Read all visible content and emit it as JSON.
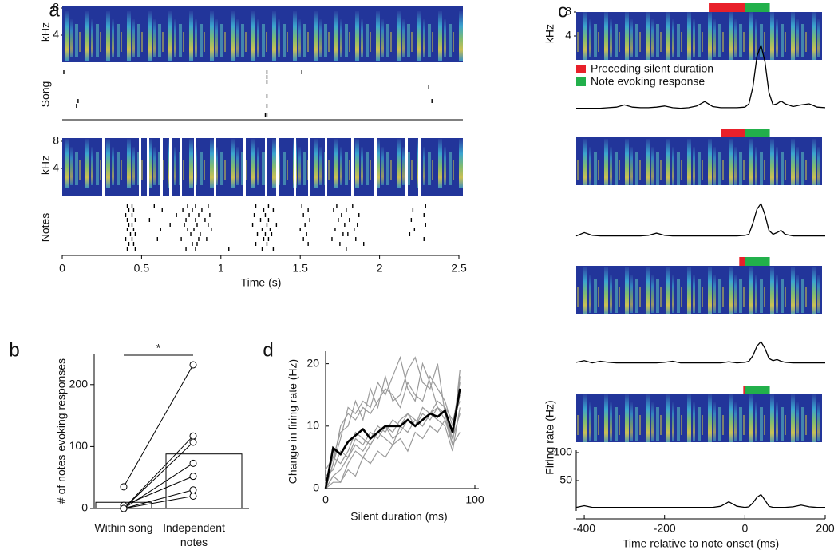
{
  "chart_data": [
    {
      "type": "raster",
      "label": "a",
      "spectrogram": {
        "ylabel": "kHz",
        "ylim": [
          0,
          8
        ],
        "yticks": [
          4,
          8
        ]
      },
      "rasters": [
        {
          "name": "Song",
          "trials": [
            [
              0.01,
              1.29,
              1.51
            ],
            [
              1.29
            ],
            [
              1.29
            ],
            [
              2.31
            ],
            [],
            [
              1.29
            ],
            [
              0.1,
              2.33
            ],
            [
              0.09,
              1.29
            ],
            [],
            [
              1.28,
              1.29
            ]
          ]
        },
        {
          "name": "Notes",
          "trials": [
            [
              0.41,
              0.44,
              0.58,
              0.79,
              0.84,
              0.92,
              1.22,
              1.3,
              1.51,
              1.73,
              1.83,
              2.29
            ],
            [
              0.42,
              0.45,
              0.63,
              0.76,
              0.82,
              0.88,
              1.27,
              1.33,
              1.55,
              1.71,
              1.79,
              2.21
            ],
            [
              0.4,
              0.44,
              0.72,
              0.8,
              0.86,
              0.93,
              1.21,
              1.28,
              1.52,
              1.76,
              1.87,
              2.28
            ],
            [
              0.41,
              0.46,
              0.55,
              0.78,
              0.84,
              0.9,
              1.25,
              1.3,
              1.56,
              1.74,
              1.81,
              2.2
            ],
            [
              0.42,
              0.44,
              0.68,
              0.77,
              0.85,
              0.92,
              1.2,
              1.29,
              1.35,
              1.53,
              1.78,
              1.86,
              2.29
            ],
            [
              0.41,
              0.45,
              0.62,
              0.79,
              0.83,
              0.94,
              1.26,
              1.31,
              1.5,
              1.72,
              1.84,
              2.22
            ],
            [
              0.43,
              0.46,
              0.81,
              0.87,
              1.23,
              1.28,
              1.32,
              1.54,
              1.77,
              1.8,
              2.19
            ],
            [
              0.4,
              0.44,
              0.6,
              0.75,
              0.86,
              0.91,
              1.27,
              1.3,
              1.52,
              1.7,
              1.85,
              2.28
            ],
            [
              0.42,
              0.45,
              0.82,
              0.85,
              1.22,
              1.29,
              1.55,
              1.75,
              1.9
            ],
            [
              0.41,
              0.46,
              0.78,
              0.84,
              1.05,
              1.26,
              1.33,
              1.79
            ]
          ]
        }
      ],
      "xlabel": "Time (s)",
      "xlim": [
        0,
        2.5
      ],
      "xticks": [
        0,
        0.5,
        1,
        1.5,
        2,
        2.5
      ]
    },
    {
      "type": "bar",
      "label": "b",
      "ylabel": "# of notes evoking responses",
      "categories": [
        "Within song",
        "Independent notes"
      ],
      "values": [
        10,
        88
      ],
      "pairs": [
        [
          35,
          232
        ],
        [
          0,
          117
        ],
        [
          0,
          107
        ],
        [
          0,
          73
        ],
        [
          5,
          52
        ],
        [
          0,
          30
        ],
        [
          0,
          20
        ]
      ],
      "significance": "*",
      "ylim": [
        0,
        250
      ],
      "yticks": [
        0,
        100,
        200
      ]
    },
    {
      "type": "psth",
      "label": "c",
      "spectrogram": {
        "ylabel": "kHz",
        "ylim": [
          0,
          8
        ],
        "yticks": [
          4,
          8
        ]
      },
      "legend": [
        {
          "name": "Preceding silent duration",
          "color": "#e8202a"
        },
        {
          "name": "Note evoking response",
          "color": "#22b04b"
        }
      ],
      "x": [
        -420,
        -400,
        -380,
        -360,
        -340,
        -320,
        -300,
        -280,
        -260,
        -240,
        -220,
        -200,
        -180,
        -160,
        -140,
        -120,
        -100,
        -80,
        -60,
        -40,
        -20,
        0,
        10,
        20,
        30,
        40,
        50,
        60,
        70,
        80,
        90,
        100,
        120,
        140,
        160,
        180,
        200
      ],
      "trials": [
        {
          "silence": [
            -90,
            0
          ],
          "note": [
            0,
            62
          ],
          "values": [
            2,
            2,
            2,
            2,
            3,
            4,
            8,
            4,
            3,
            3,
            4,
            6,
            3,
            2,
            3,
            6,
            14,
            5,
            3,
            3,
            3,
            4,
            10,
            40,
            95,
            115,
            85,
            30,
            8,
            10,
            15,
            10,
            5,
            8,
            10,
            4,
            3
          ]
        },
        {
          "silence": [
            -60,
            0
          ],
          "note": [
            0,
            62
          ],
          "values": [
            2,
            8,
            3,
            2,
            2,
            2,
            2,
            2,
            2,
            3,
            7,
            3,
            2,
            2,
            2,
            2,
            2,
            2,
            2,
            2,
            2,
            3,
            5,
            25,
            50,
            60,
            40,
            12,
            5,
            8,
            12,
            5,
            2,
            2,
            2,
            2,
            2
          ]
        },
        {
          "silence": [
            -14,
            0
          ],
          "note": [
            0,
            62
          ],
          "values": [
            3,
            6,
            2,
            5,
            3,
            2,
            2,
            2,
            2,
            2,
            2,
            3,
            5,
            2,
            2,
            2,
            2,
            2,
            2,
            4,
            2,
            3,
            5,
            15,
            32,
            40,
            28,
            10,
            6,
            8,
            5,
            3,
            2,
            2,
            2,
            2,
            2
          ]
        },
        {
          "silence": [
            -4,
            0
          ],
          "note": [
            0,
            62
          ],
          "values": [
            2,
            5,
            2,
            2,
            2,
            2,
            2,
            2,
            2,
            2,
            2,
            2,
            2,
            2,
            2,
            2,
            2,
            2,
            4,
            12,
            4,
            2,
            3,
            10,
            20,
            25,
            15,
            4,
            2,
            2,
            2,
            2,
            3,
            6,
            3,
            2,
            2
          ]
        }
      ],
      "ylabel": "Firing rate (Hz)",
      "ylim": [
        0,
        100
      ],
      "yticks": [
        50,
        100
      ],
      "xlabel": "Time relative to note onset (ms)",
      "xlim": [
        -420,
        200
      ],
      "xticks": [
        -400,
        -200,
        0,
        200
      ]
    },
    {
      "type": "line",
      "label": "d",
      "x": [
        0,
        5,
        10,
        15,
        20,
        25,
        30,
        35,
        40,
        45,
        50,
        55,
        60,
        65,
        70,
        75,
        80,
        85,
        90
      ],
      "series": [
        {
          "color": "#9a9a9a",
          "values": [
            0,
            4,
            8,
            13,
            12,
            14,
            13,
            17,
            15,
            18,
            21,
            16,
            14,
            20,
            17,
            13,
            12,
            8,
            19
          ]
        },
        {
          "color": "#9a9a9a",
          "values": [
            1,
            5,
            9,
            10,
            14,
            11,
            16,
            13,
            18,
            14,
            15,
            19,
            21,
            17,
            16,
            20,
            12,
            7,
            18
          ]
        },
        {
          "color": "#9a9a9a",
          "values": [
            0,
            2,
            3,
            5,
            7,
            6,
            8,
            10,
            9,
            11,
            10,
            12,
            11,
            10,
            12,
            13,
            11,
            7,
            9
          ]
        },
        {
          "color": "#9a9a9a",
          "values": [
            0,
            1,
            1,
            3,
            2,
            5,
            4,
            6,
            5,
            7,
            8,
            6,
            9,
            8,
            10,
            9,
            11,
            8,
            12
          ]
        },
        {
          "color": "#9a9a9a",
          "values": [
            2,
            3,
            6,
            5,
            8,
            7,
            9,
            8,
            10,
            9,
            11,
            12,
            10,
            13,
            12,
            14,
            13,
            11,
            14
          ]
        },
        {
          "color": "#9a9a9a",
          "values": [
            0,
            4,
            10,
            12,
            11,
            13,
            12,
            14,
            16,
            15,
            13,
            17,
            15,
            14,
            18,
            16,
            14,
            10,
            17
          ]
        },
        {
          "color": "#9a9a9a",
          "values": [
            0,
            2,
            1,
            4,
            6,
            5,
            7,
            9,
            8,
            7,
            10,
            9,
            11,
            10,
            12,
            11,
            10,
            6,
            13
          ]
        },
        {
          "color": "#9a9a9a",
          "values": [
            3,
            5,
            4,
            6,
            9,
            8,
            7,
            9,
            10,
            8,
            9,
            11,
            10,
            12,
            11,
            13,
            12,
            9,
            15
          ]
        },
        {
          "color": "#000000",
          "values": [
            0,
            6.5,
            5.5,
            7.5,
            8.5,
            9.5,
            8,
            9,
            10,
            10,
            10,
            11,
            10,
            11,
            12,
            11.5,
            12.5,
            9,
            16
          ]
        }
      ],
      "xlabel": "Silent duration (ms)",
      "ylabel": "Change in firing rate (Hz)",
      "xlim": [
        0,
        100
      ],
      "xticks": [
        0,
        100
      ],
      "ylim": [
        0,
        22
      ],
      "yticks": [
        0,
        10,
        20
      ]
    }
  ]
}
